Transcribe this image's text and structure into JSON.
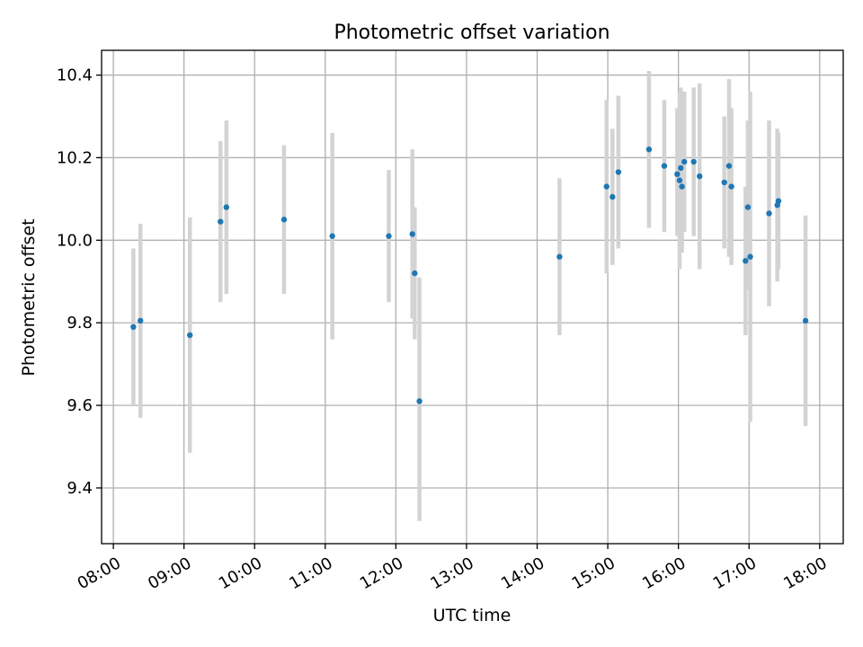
{
  "chart_data": {
    "type": "scatter",
    "title": "Photometric offset variation",
    "xlabel": "UTC time",
    "ylabel": "Photometric offset",
    "x_axis": "time",
    "xlim": [
      "07:50",
      "18:20"
    ],
    "ylim": [
      9.265,
      10.46
    ],
    "xticks": [
      "08:00",
      "09:00",
      "10:00",
      "11:00",
      "12:00",
      "13:00",
      "14:00",
      "15:00",
      "16:00",
      "17:00",
      "18:00"
    ],
    "yticks": [
      9.4,
      9.6,
      9.8,
      10.0,
      10.2,
      10.4
    ],
    "ytick_labels": [
      "9.4",
      "9.6",
      "9.8",
      "10.0",
      "10.2",
      "10.4"
    ],
    "grid": true,
    "colors": {
      "point": "#1f77b4",
      "errorbar": "#d3d3d3",
      "grid": "#b0b0b0"
    },
    "points": [
      {
        "x": "08:17",
        "y": 9.79,
        "low": 9.6,
        "high": 9.98
      },
      {
        "x": "08:23",
        "y": 9.805,
        "low": 9.57,
        "high": 10.04
      },
      {
        "x": "09:05",
        "y": 9.77,
        "low": 9.485,
        "high": 10.055
      },
      {
        "x": "09:31",
        "y": 10.045,
        "low": 9.85,
        "high": 10.24
      },
      {
        "x": "09:36",
        "y": 10.08,
        "low": 9.87,
        "high": 10.29
      },
      {
        "x": "10:25",
        "y": 10.05,
        "low": 9.87,
        "high": 10.23
      },
      {
        "x": "11:06",
        "y": 10.01,
        "low": 9.76,
        "high": 10.26
      },
      {
        "x": "11:54",
        "y": 10.01,
        "low": 9.85,
        "high": 10.17
      },
      {
        "x": "12:14",
        "y": 10.015,
        "low": 9.81,
        "high": 10.22
      },
      {
        "x": "12:16",
        "y": 9.92,
        "low": 9.76,
        "high": 10.08
      },
      {
        "x": "12:20",
        "y": 9.61,
        "low": 9.32,
        "high": 9.91
      },
      {
        "x": "14:19",
        "y": 9.96,
        "low": 9.77,
        "high": 10.15
      },
      {
        "x": "14:59",
        "y": 10.13,
        "low": 9.92,
        "high": 10.34
      },
      {
        "x": "15:04",
        "y": 10.105,
        "low": 9.94,
        "high": 10.27
      },
      {
        "x": "15:09",
        "y": 10.165,
        "low": 9.98,
        "high": 10.35
      },
      {
        "x": "15:35",
        "y": 10.22,
        "low": 10.03,
        "high": 10.41
      },
      {
        "x": "15:48",
        "y": 10.18,
        "low": 10.02,
        "high": 10.34
      },
      {
        "x": "15:59",
        "y": 10.16,
        "low": 10.01,
        "high": 10.32
      },
      {
        "x": "16:01",
        "y": 10.145,
        "low": 9.93,
        "high": 10.36
      },
      {
        "x": "16:02",
        "y": 10.175,
        "low": 9.99,
        "high": 10.37
      },
      {
        "x": "16:03",
        "y": 10.13,
        "low": 9.97,
        "high": 10.29
      },
      {
        "x": "16:05",
        "y": 10.19,
        "low": 10.02,
        "high": 10.36
      },
      {
        "x": "16:13",
        "y": 10.19,
        "low": 10.01,
        "high": 10.37
      },
      {
        "x": "16:18",
        "y": 10.155,
        "low": 9.93,
        "high": 10.38
      },
      {
        "x": "16:39",
        "y": 10.14,
        "low": 9.98,
        "high": 10.3
      },
      {
        "x": "16:43",
        "y": 10.18,
        "low": 9.96,
        "high": 10.39
      },
      {
        "x": "16:45",
        "y": 10.13,
        "low": 9.94,
        "high": 10.32
      },
      {
        "x": "16:57",
        "y": 9.95,
        "low": 9.77,
        "high": 10.13
      },
      {
        "x": "16:59",
        "y": 10.08,
        "low": 9.88,
        "high": 10.29
      },
      {
        "x": "17:01",
        "y": 9.96,
        "low": 9.56,
        "high": 10.36
      },
      {
        "x": "17:17",
        "y": 10.065,
        "low": 9.84,
        "high": 10.29
      },
      {
        "x": "17:24",
        "y": 10.085,
        "low": 9.9,
        "high": 10.27
      },
      {
        "x": "17:25",
        "y": 10.095,
        "low": 9.93,
        "high": 10.26
      },
      {
        "x": "17:48",
        "y": 9.805,
        "low": 9.55,
        "high": 10.06
      }
    ]
  }
}
